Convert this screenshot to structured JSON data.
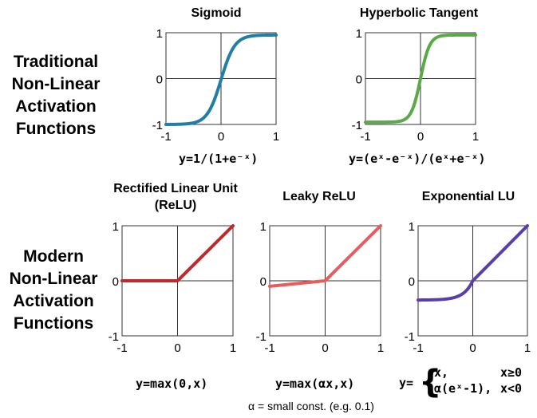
{
  "labels": {
    "traditional": [
      "Traditional",
      "Non-Linear",
      "Activation",
      "Functions"
    ],
    "modern": [
      "Modern",
      "Non-Linear",
      "Activation",
      "Functions"
    ]
  },
  "alpha_note": "α = small const. (e.g. 0.1)",
  "panels": [
    {
      "id": "sigmoid",
      "title": "Sigmoid",
      "equation": "y=1/(1+e⁻ˣ)",
      "color": "#1f7fa6",
      "ticks": {
        "x": [
          "-1",
          "0",
          "1"
        ],
        "y": [
          "1",
          "0",
          "-1"
        ]
      },
      "fn": "sigmoid"
    },
    {
      "id": "tanh",
      "title": "Hyperbolic Tangent",
      "equation": "y=(eˣ-e⁻ˣ)/(eˣ+e⁻ˣ)",
      "color": "#5aab48",
      "ticks": {
        "x": [
          "-1",
          "0",
          "1"
        ],
        "y": [
          "1",
          "0",
          "-1"
        ]
      },
      "fn": "tanh"
    },
    {
      "id": "relu",
      "title": [
        "Rectified Linear Unit",
        "(ReLU)"
      ],
      "equation": "y=max(0,x)",
      "color": "#c0282b",
      "ticks": {
        "x": [
          "-1",
          "0",
          "1"
        ],
        "y": [
          "1",
          "0",
          "-1"
        ]
      },
      "fn": "relu"
    },
    {
      "id": "leaky-relu",
      "title": "Leaky ReLU",
      "equation": "y=max(αx,x)",
      "color": "#e65d5d",
      "ticks": {
        "x": [
          "-1",
          "0",
          "1"
        ],
        "y": [
          "1",
          "0",
          "-1"
        ]
      },
      "fn": "leaky"
    },
    {
      "id": "elu",
      "title": "Exponential LU",
      "equation_prefix": "y=",
      "equation_cases": [
        {
          "expr": "x,",
          "cond": "x≥0"
        },
        {
          "expr": "α(eˣ-1),",
          "cond": "x<0"
        }
      ],
      "color": "#5b3fa8",
      "ticks": {
        "x": [
          "-1",
          "0",
          "1"
        ],
        "y": [
          "1",
          "0",
          "-1"
        ]
      },
      "fn": "elu"
    }
  ]
}
